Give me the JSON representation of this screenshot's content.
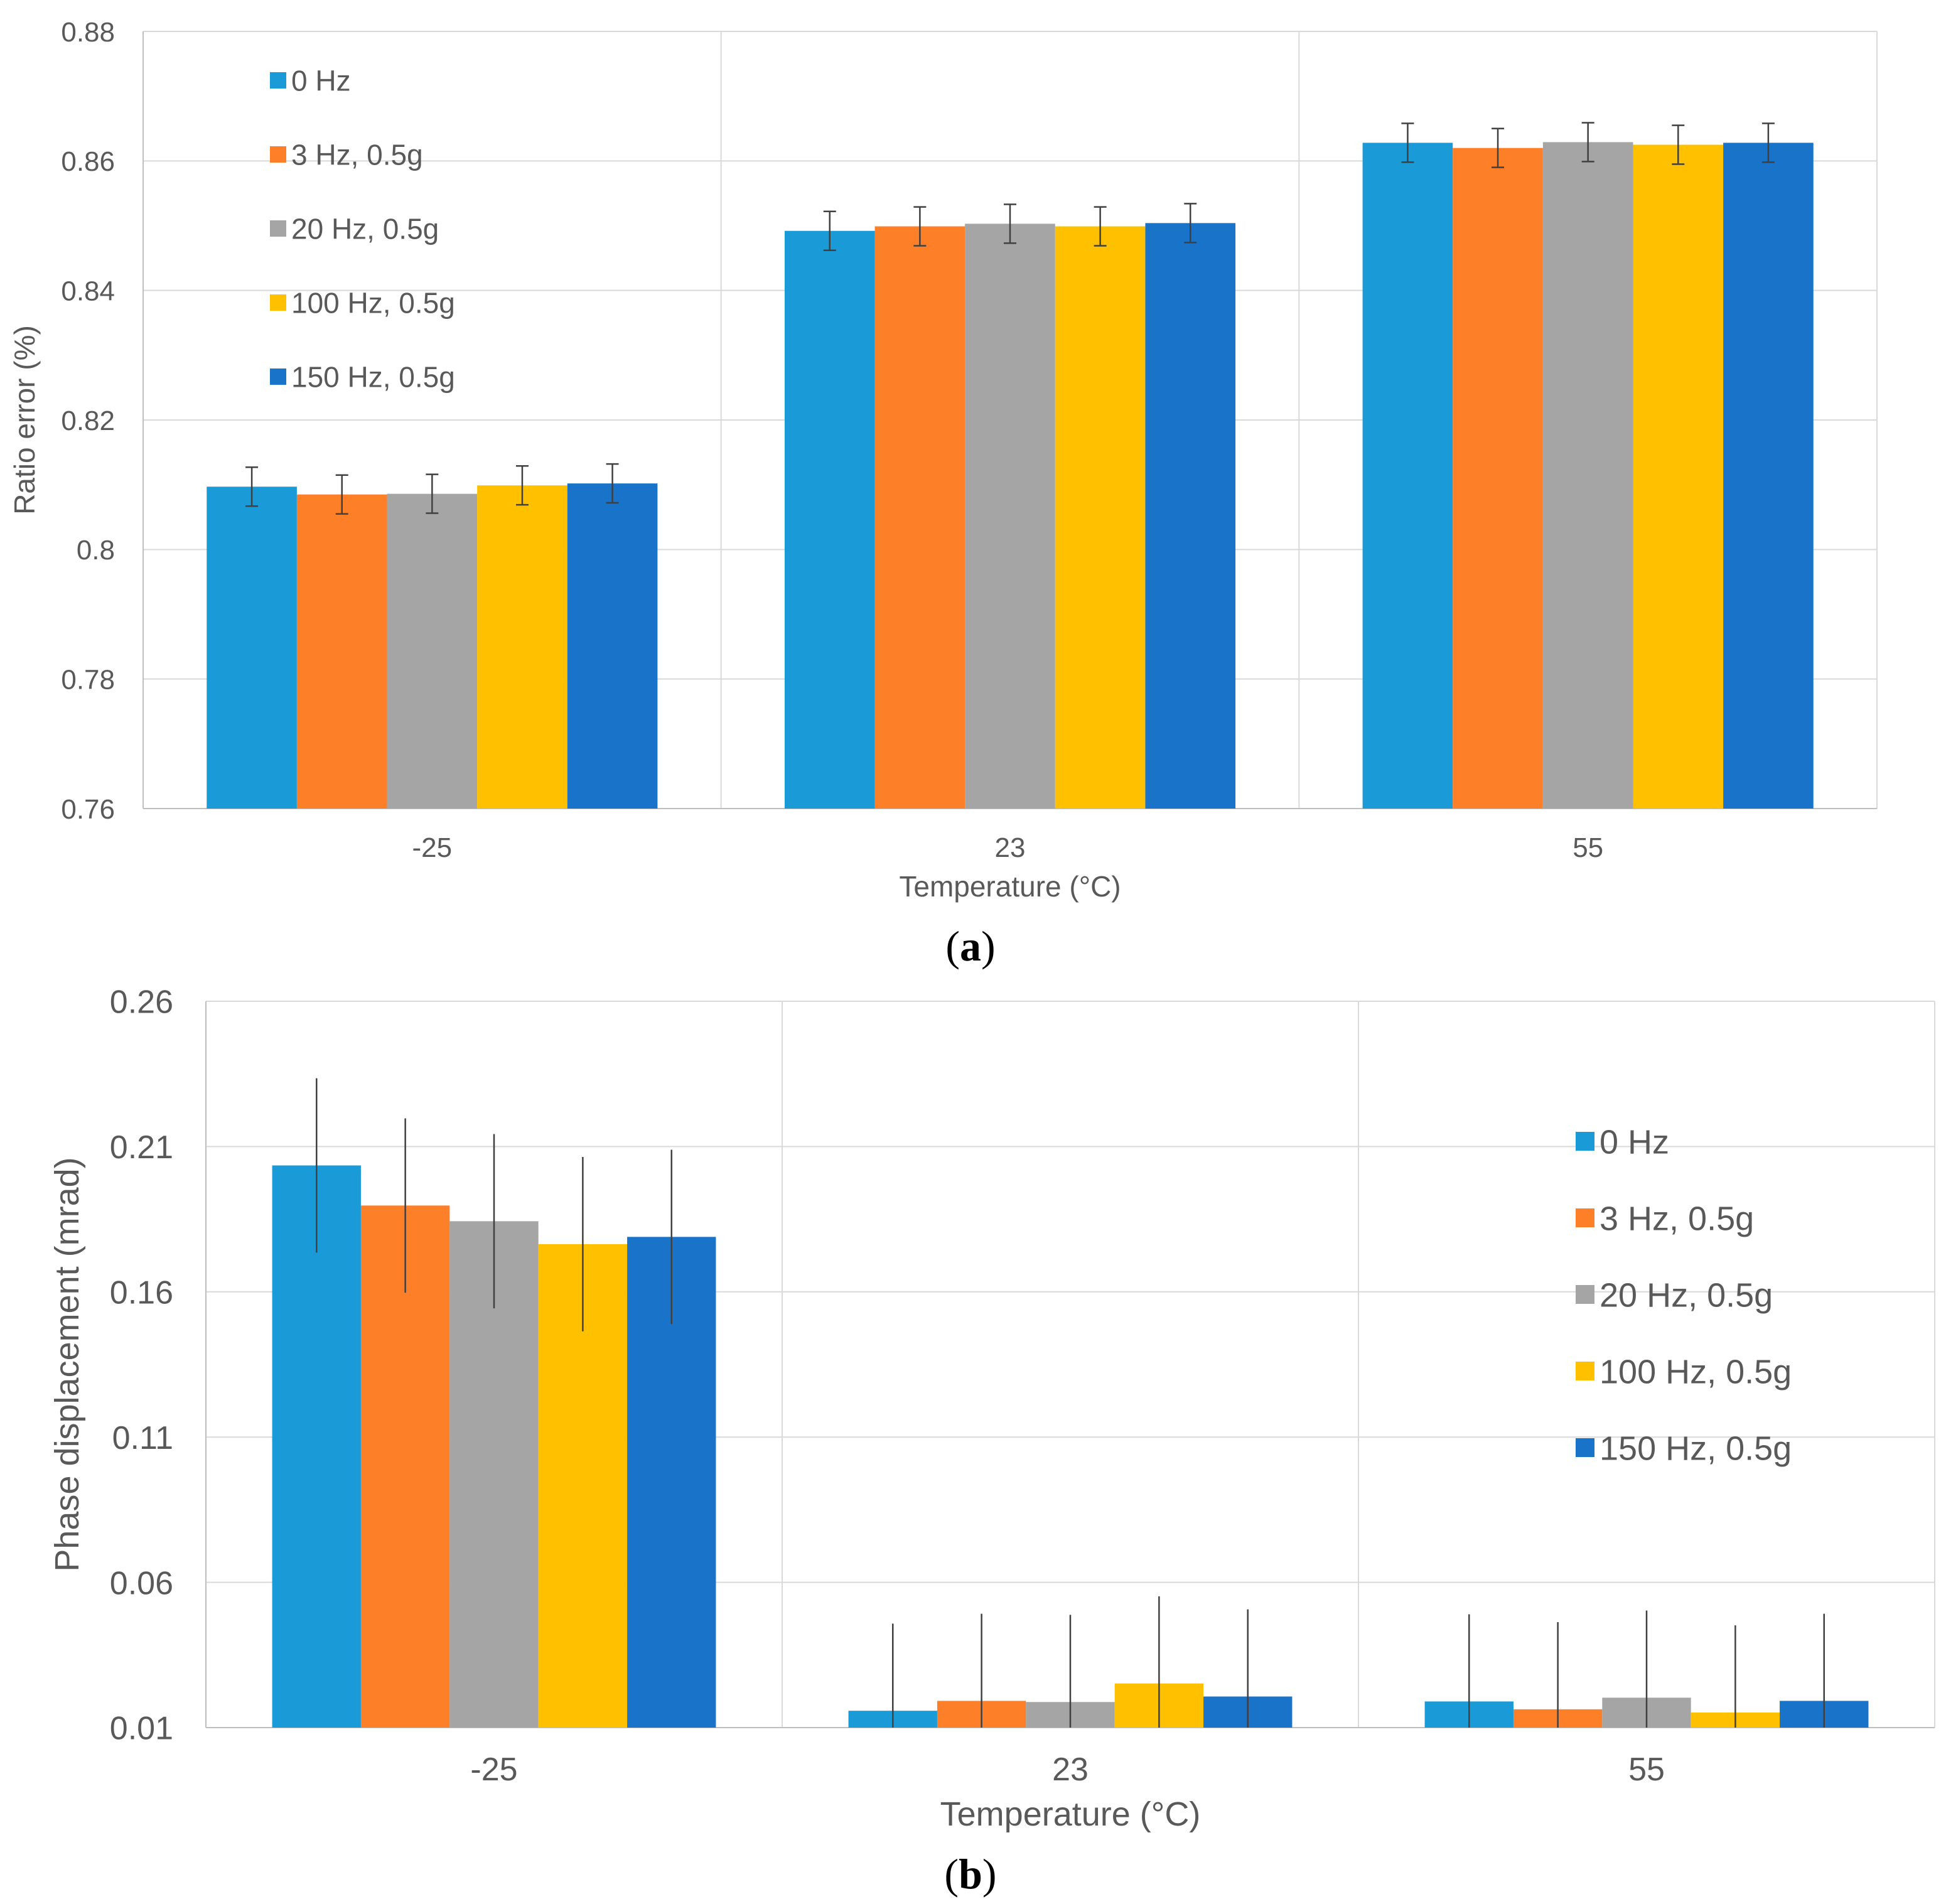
{
  "colors": {
    "series": [
      "#1a9bd7",
      "#fd7f28",
      "#a5a5a5",
      "#ffc000",
      "#1873c9"
    ],
    "grid": "#d9d9d9",
    "axis": "#bfbfbf",
    "errorbar": "#404040",
    "text": "#595959"
  },
  "chart_data": [
    {
      "type": "bar",
      "panel_label": "(a)",
      "panel_letter": "a",
      "xlabel": "Temperature (°C)",
      "ylabel": "Ratio error (%)",
      "categories": [
        "-25",
        "23",
        "55"
      ],
      "ylim": [
        0.76,
        0.88
      ],
      "yticks": [
        0.76,
        0.78,
        0.8,
        0.82,
        0.84,
        0.86,
        0.88
      ],
      "ytick_labels": [
        "0.76",
        "0.78",
        "0.8",
        "0.82",
        "0.84",
        "0.86",
        "0.88"
      ],
      "grid": true,
      "legend_position": "top-left",
      "series": [
        {
          "name": "0 Hz",
          "values": [
            0.8097,
            0.8492,
            0.8628
          ],
          "errors": [
            0.003,
            0.003,
            0.003
          ]
        },
        {
          "name": "3 Hz, 0.5g",
          "values": [
            0.8085,
            0.8499,
            0.862
          ],
          "errors": [
            0.003,
            0.003,
            0.003
          ]
        },
        {
          "name": "20 Hz, 0.5g",
          "values": [
            0.8086,
            0.8503,
            0.8629
          ],
          "errors": [
            0.003,
            0.003,
            0.003
          ]
        },
        {
          "name": "100 Hz, 0.5g",
          "values": [
            0.8099,
            0.8499,
            0.8625
          ],
          "errors": [
            0.003,
            0.003,
            0.003
          ]
        },
        {
          "name": "150 Hz, 0.5g",
          "values": [
            0.8102,
            0.8504,
            0.8628
          ],
          "errors": [
            0.003,
            0.003,
            0.003
          ]
        }
      ]
    },
    {
      "type": "bar",
      "panel_label": "(b)",
      "panel_letter": "b",
      "xlabel": "Temperature (°C)",
      "ylabel": "Phase displacement (mrad)",
      "categories": [
        "-25",
        "23",
        "55"
      ],
      "ylim": [
        0.01,
        0.26
      ],
      "yticks": [
        0.01,
        0.06,
        0.11,
        0.16,
        0.21,
        0.26
      ],
      "ytick_labels": [
        "0.01",
        "0.06",
        "0.11",
        "0.16",
        "0.21",
        "0.26"
      ],
      "grid": true,
      "legend_position": "right",
      "series": [
        {
          "name": "0 Hz",
          "values": [
            0.2035,
            0.0158,
            0.019
          ],
          "errors": [
            0.03,
            0.03,
            0.03
          ]
        },
        {
          "name": "3 Hz, 0.5g",
          "values": [
            0.1897,
            0.0192,
            0.0163
          ],
          "errors": [
            0.03,
            0.03,
            0.03
          ]
        },
        {
          "name": "20 Hz, 0.5g",
          "values": [
            0.1843,
            0.0188,
            0.0203
          ],
          "errors": [
            0.03,
            0.03,
            0.03
          ]
        },
        {
          "name": "100 Hz, 0.5g",
          "values": [
            0.1764,
            0.0252,
            0.0152
          ],
          "errors": [
            0.03,
            0.03,
            0.03
          ]
        },
        {
          "name": "150 Hz, 0.5g",
          "values": [
            0.1789,
            0.0207,
            0.0192
          ],
          "errors": [
            0.03,
            0.03,
            0.03
          ]
        }
      ]
    }
  ]
}
